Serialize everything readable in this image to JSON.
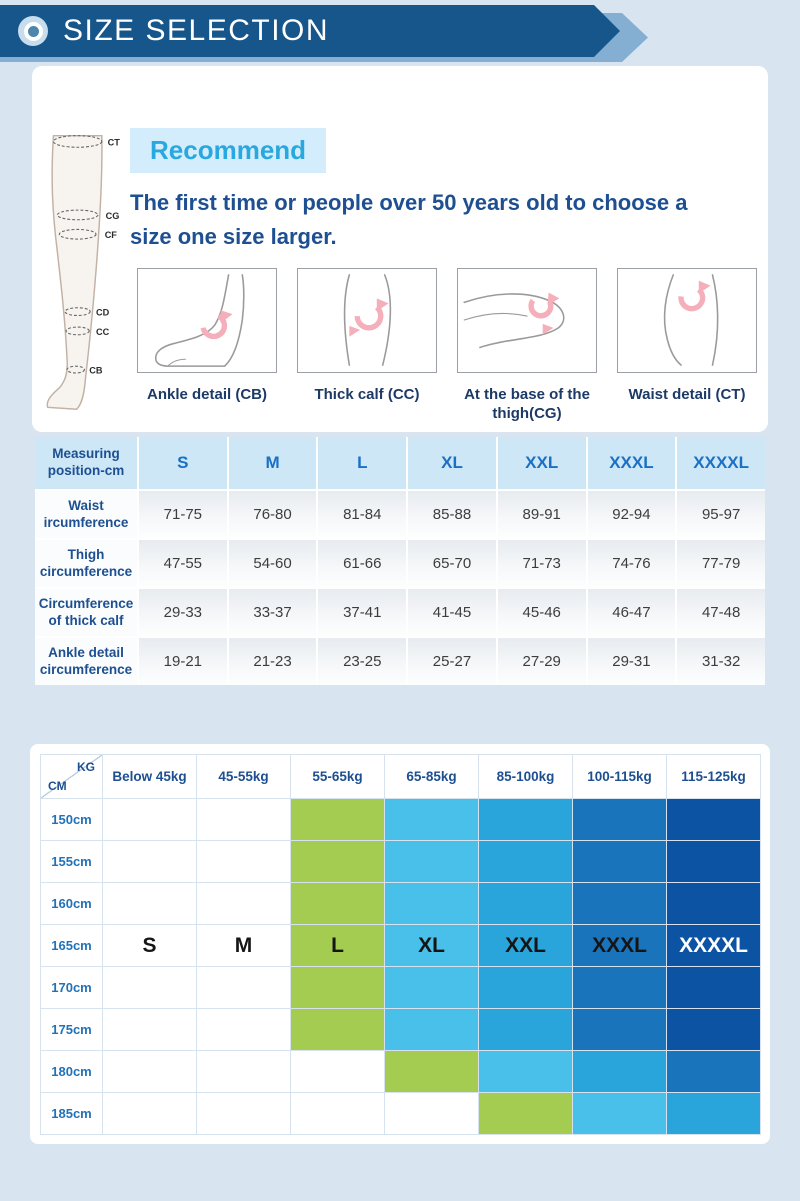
{
  "header": {
    "title": "SIZE SELECTION"
  },
  "recommend": {
    "badge": "Recommend",
    "text": "The first time or people over 50 years old to choose a size one size larger.",
    "leg_labels": [
      "CT",
      "CG",
      "CF",
      "CD",
      "CC",
      "CB"
    ],
    "thumbnails": [
      {
        "caption": "Ankle detail (CB)"
      },
      {
        "caption": "Thick calf (CC)"
      },
      {
        "caption": "At the base of the thigh(CG)"
      },
      {
        "caption": "Waist detail (CT)"
      }
    ]
  },
  "measure_table": {
    "header": [
      "Measuring position-cm",
      "S",
      "M",
      "L",
      "XL",
      "XXL",
      "XXXL",
      "XXXXL"
    ],
    "rows": [
      {
        "label": "Waist ircumference",
        "values": [
          "71-75",
          "76-80",
          "81-84",
          "85-88",
          "89-91",
          "92-94",
          "95-97"
        ]
      },
      {
        "label": "Thigh circumference",
        "values": [
          "47-55",
          "54-60",
          "61-66",
          "65-70",
          "71-73",
          "74-76",
          "77-79"
        ]
      },
      {
        "label": "Circumference of thick calf",
        "values": [
          "29-33",
          "33-37",
          "37-41",
          "41-45",
          "45-46",
          "46-47",
          "47-48"
        ]
      },
      {
        "label": "Ankle detail circumference",
        "values": [
          "19-21",
          "21-23",
          "23-25",
          "25-27",
          "27-29",
          "29-31",
          "31-32"
        ]
      }
    ]
  },
  "size_grid": {
    "corner": {
      "kg": "KG",
      "cm": "CM"
    },
    "weight_headers": [
      "Below 45kg",
      "45-55kg",
      "55-65kg",
      "65-85kg",
      "85-100kg",
      "100-115kg",
      "115-125kg"
    ],
    "height_headers": [
      "150cm",
      "155cm",
      "160cm",
      "165cm",
      "170cm",
      "175cm",
      "180cm",
      "185cm"
    ],
    "size_labels": [
      "S",
      "M",
      "L",
      "XL",
      "XXL",
      "XXXL",
      "XXXXL"
    ],
    "label_row": 3,
    "zone_colors": {
      "L": "#a4cc50",
      "XL": "#49c0e9",
      "XXL": "#2aa5db",
      "XXXL": "#1a74bc",
      "XXXXL": "#0c53a4"
    },
    "cells": [
      [
        "",
        "",
        "L",
        "XL",
        "XXL",
        "XXXL",
        "XXXXL"
      ],
      [
        "",
        "",
        "L",
        "XL",
        "XXL",
        "XXXL",
        "XXXXL"
      ],
      [
        "",
        "",
        "L",
        "XL",
        "XXL",
        "XXXL",
        "XXXXL"
      ],
      [
        "",
        "",
        "L",
        "XL",
        "XXL",
        "XXXL",
        "XXXXL"
      ],
      [
        "",
        "",
        "L",
        "XL",
        "XXL",
        "XXXL",
        "XXXXL"
      ],
      [
        "",
        "",
        "L",
        "XL",
        "XXL",
        "XXXL",
        "XXXXL"
      ],
      [
        "",
        "",
        "",
        "L",
        "XL",
        "XXL",
        "XXXL"
      ],
      [
        "",
        "",
        "",
        "",
        "L",
        "XL",
        "XXL"
      ]
    ]
  }
}
